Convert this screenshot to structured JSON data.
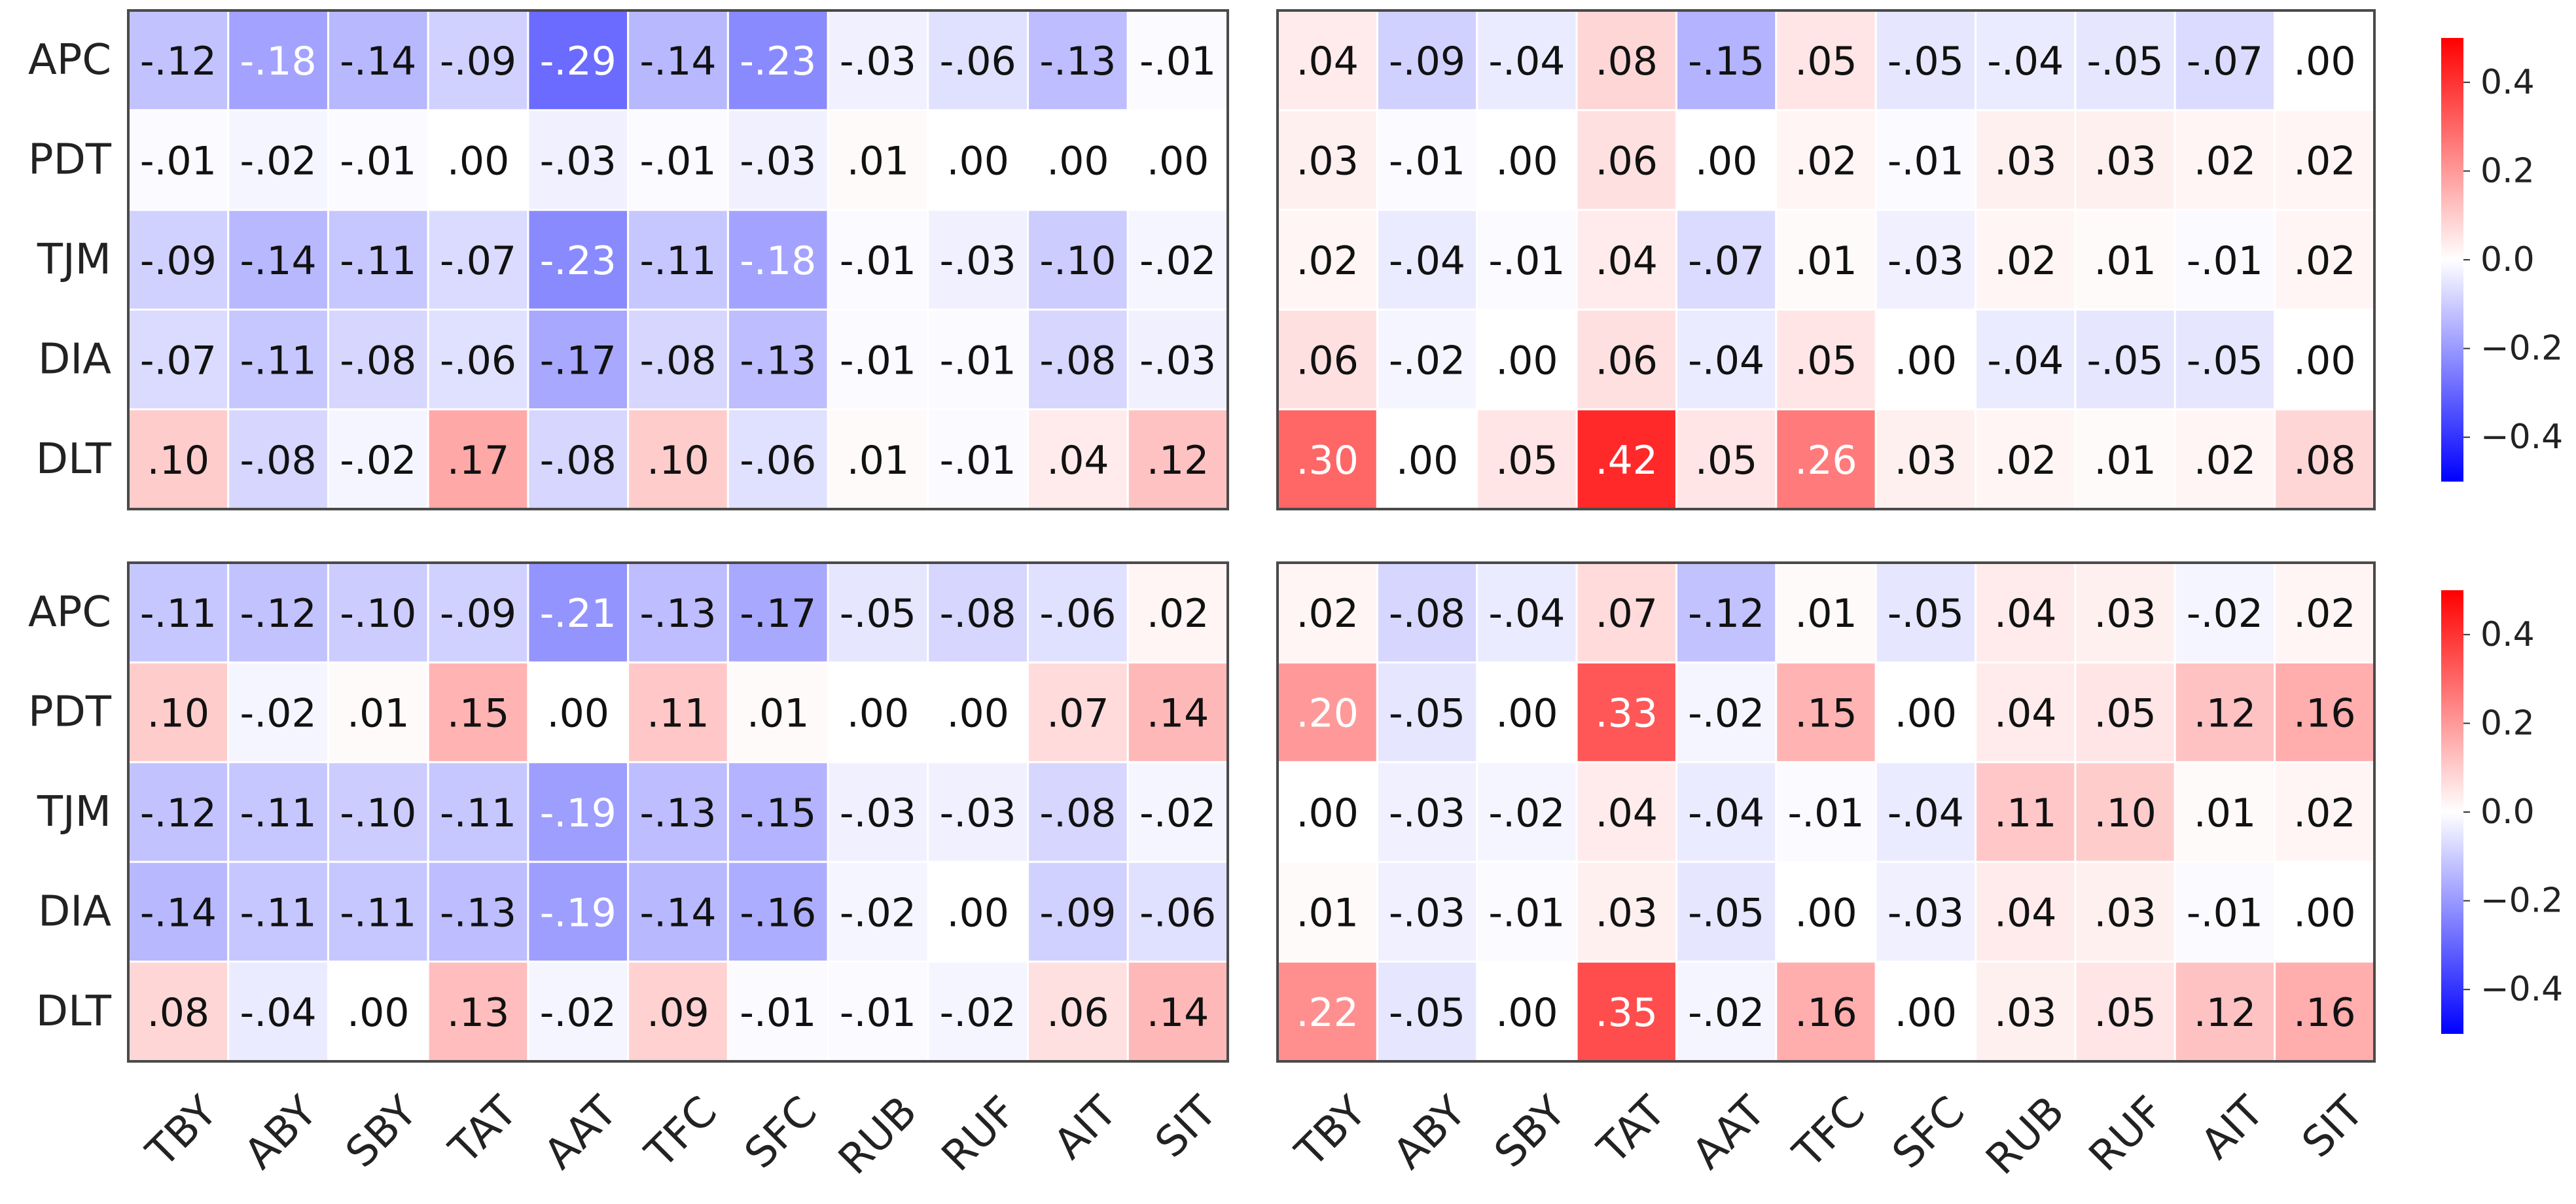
{
  "chart_data": [
    {
      "type": "heatmap",
      "rows": [
        "APC",
        "PDT",
        "TJM",
        "DIA",
        "DLT"
      ],
      "columns": [
        "TBY",
        "ABY",
        "SBY",
        "TAT",
        "AAT",
        "TFC",
        "SFC",
        "RUB",
        "RUF",
        "AIT",
        "SIT"
      ],
      "values": [
        [
          -0.12,
          -0.18,
          -0.14,
          -0.09,
          -0.29,
          -0.14,
          -0.23,
          -0.03,
          -0.06,
          -0.13,
          -0.01
        ],
        [
          -0.01,
          -0.02,
          -0.01,
          0.0,
          -0.03,
          -0.01,
          -0.03,
          0.01,
          0.0,
          0.0,
          0.0
        ],
        [
          -0.09,
          -0.14,
          -0.11,
          -0.07,
          -0.23,
          -0.11,
          -0.18,
          -0.01,
          -0.03,
          -0.1,
          -0.02
        ],
        [
          -0.07,
          -0.11,
          -0.08,
          -0.06,
          -0.17,
          -0.08,
          -0.13,
          -0.01,
          -0.01,
          -0.08,
          -0.03
        ],
        [
          0.1,
          -0.08,
          -0.02,
          0.17,
          -0.08,
          0.1,
          -0.06,
          0.01,
          -0.01,
          0.04,
          0.12
        ]
      ],
      "labels": [
        [
          "-.12",
          "-.18",
          "-.14",
          "-.09",
          "-.29",
          "-.14",
          "-.23",
          "-.03",
          "-.06",
          "-.13",
          "-.01"
        ],
        [
          "-.01",
          "-.02",
          "-.01",
          ".00",
          "-.03",
          "-.01",
          "-.03",
          ".01",
          ".00",
          ".00",
          ".00"
        ],
        [
          "-.09",
          "-.14",
          "-.11",
          "-.07",
          "-.23",
          "-.11",
          "-.18",
          "-.01",
          "-.03",
          "-.10",
          "-.02"
        ],
        [
          "-.07",
          "-.11",
          "-.08",
          "-.06",
          "-.17",
          "-.08",
          "-.13",
          "-.01",
          "-.01",
          "-.08",
          "-.03"
        ],
        [
          ".10",
          "-.08",
          "-.02",
          ".17",
          "-.08",
          ".10",
          "-.06",
          ".01",
          "-.01",
          ".04",
          ".12"
        ]
      ]
    },
    {
      "type": "heatmap",
      "rows": [
        "APC",
        "PDT",
        "TJM",
        "DIA",
        "DLT"
      ],
      "columns": [
        "TBY",
        "ABY",
        "SBY",
        "TAT",
        "AAT",
        "TFC",
        "SFC",
        "RUB",
        "RUF",
        "AIT",
        "SIT"
      ],
      "values": [
        [
          0.04,
          -0.09,
          -0.04,
          0.08,
          -0.15,
          0.05,
          -0.05,
          -0.04,
          -0.05,
          -0.07,
          0.0
        ],
        [
          0.03,
          -0.01,
          0.0,
          0.06,
          0.0,
          0.02,
          -0.01,
          0.03,
          0.03,
          0.02,
          0.02
        ],
        [
          0.02,
          -0.04,
          -0.01,
          0.04,
          -0.07,
          0.01,
          -0.03,
          0.02,
          0.01,
          -0.01,
          0.02
        ],
        [
          0.06,
          -0.02,
          0.0,
          0.06,
          -0.04,
          0.05,
          0.0,
          -0.04,
          -0.05,
          -0.05,
          0.0
        ],
        [
          0.3,
          0.0,
          0.05,
          0.42,
          0.05,
          0.26,
          0.03,
          0.02,
          0.01,
          0.02,
          0.08
        ]
      ],
      "labels": [
        [
          ".04",
          "-.09",
          "-.04",
          ".08",
          "-.15",
          ".05",
          "-.05",
          "-.04",
          "-.05",
          "-.07",
          ".00"
        ],
        [
          ".03",
          "-.01",
          ".00",
          ".06",
          ".00",
          ".02",
          "-.01",
          ".03",
          ".03",
          ".02",
          ".02"
        ],
        [
          ".02",
          "-.04",
          "-.01",
          ".04",
          "-.07",
          ".01",
          "-.03",
          ".02",
          ".01",
          "-.01",
          ".02"
        ],
        [
          ".06",
          "-.02",
          ".00",
          ".06",
          "-.04",
          ".05",
          ".00",
          "-.04",
          "-.05",
          "-.05",
          ".00"
        ],
        [
          ".30",
          ".00",
          ".05",
          ".42",
          ".05",
          ".26",
          ".03",
          ".02",
          ".01",
          ".02",
          ".08"
        ]
      ]
    },
    {
      "type": "heatmap",
      "rows": [
        "APC",
        "PDT",
        "TJM",
        "DIA",
        "DLT"
      ],
      "columns": [
        "TBY",
        "ABY",
        "SBY",
        "TAT",
        "AAT",
        "TFC",
        "SFC",
        "RUB",
        "RUF",
        "AIT",
        "SIT"
      ],
      "values": [
        [
          -0.11,
          -0.12,
          -0.1,
          -0.09,
          -0.21,
          -0.13,
          -0.17,
          -0.05,
          -0.08,
          -0.06,
          0.02
        ],
        [
          0.1,
          -0.02,
          0.01,
          0.15,
          0.0,
          0.11,
          0.01,
          0.0,
          0.0,
          0.07,
          0.14
        ],
        [
          -0.12,
          -0.11,
          -0.1,
          -0.11,
          -0.19,
          -0.13,
          -0.15,
          -0.03,
          -0.03,
          -0.08,
          -0.02
        ],
        [
          -0.14,
          -0.11,
          -0.11,
          -0.13,
          -0.19,
          -0.14,
          -0.16,
          -0.02,
          0.0,
          -0.09,
          -0.06
        ],
        [
          0.08,
          -0.04,
          0.0,
          0.13,
          -0.02,
          0.09,
          -0.01,
          -0.01,
          -0.02,
          0.06,
          0.14
        ]
      ],
      "labels": [
        [
          "-.11",
          "-.12",
          "-.10",
          "-.09",
          "-.21",
          "-.13",
          "-.17",
          "-.05",
          "-.08",
          "-.06",
          ".02"
        ],
        [
          ".10",
          "-.02",
          ".01",
          ".15",
          ".00",
          ".11",
          ".01",
          ".00",
          ".00",
          ".07",
          ".14"
        ],
        [
          "-.12",
          "-.11",
          "-.10",
          "-.11",
          "-.19",
          "-.13",
          "-.15",
          "-.03",
          "-.03",
          "-.08",
          "-.02"
        ],
        [
          "-.14",
          "-.11",
          "-.11",
          "-.13",
          "-.19",
          "-.14",
          "-.16",
          "-.02",
          ".00",
          "-.09",
          "-.06"
        ],
        [
          ".08",
          "-.04",
          ".00",
          ".13",
          "-.02",
          ".09",
          "-.01",
          "-.01",
          "-.02",
          ".06",
          ".14"
        ]
      ]
    },
    {
      "type": "heatmap",
      "rows": [
        "APC",
        "PDT",
        "TJM",
        "DIA",
        "DLT"
      ],
      "columns": [
        "TBY",
        "ABY",
        "SBY",
        "TAT",
        "AAT",
        "TFC",
        "SFC",
        "RUB",
        "RUF",
        "AIT",
        "SIT"
      ],
      "values": [
        [
          0.02,
          -0.08,
          -0.04,
          0.07,
          -0.12,
          0.01,
          -0.05,
          0.04,
          0.03,
          -0.02,
          0.02
        ],
        [
          0.2,
          -0.05,
          0.0,
          0.33,
          -0.02,
          0.15,
          0.0,
          0.04,
          0.05,
          0.12,
          0.16
        ],
        [
          0.0,
          -0.03,
          -0.02,
          0.04,
          -0.04,
          -0.01,
          -0.04,
          0.11,
          0.1,
          0.01,
          0.02
        ],
        [
          0.01,
          -0.03,
          -0.01,
          0.03,
          -0.05,
          0.0,
          -0.03,
          0.04,
          0.03,
          -0.01,
          0.0
        ],
        [
          0.22,
          -0.05,
          0.0,
          0.35,
          -0.02,
          0.16,
          0.0,
          0.03,
          0.05,
          0.12,
          0.16
        ]
      ],
      "labels": [
        [
          ".02",
          "-.08",
          "-.04",
          ".07",
          "-.12",
          ".01",
          "-.05",
          ".04",
          ".03",
          "-.02",
          ".02"
        ],
        [
          ".20",
          "-.05",
          ".00",
          ".33",
          "-.02",
          ".15",
          ".00",
          ".04",
          ".05",
          ".12",
          ".16"
        ],
        [
          ".00",
          "-.03",
          "-.02",
          ".04",
          "-.04",
          "-.01",
          "-.04",
          ".11",
          ".10",
          ".01",
          ".02"
        ],
        [
          ".01",
          "-.03",
          "-.01",
          ".03",
          "-.05",
          ".00",
          "-.03",
          ".04",
          ".03",
          "-.01",
          ".00"
        ],
        [
          ".22",
          "-.05",
          ".00",
          ".35",
          "-.02",
          ".16",
          ".00",
          ".03",
          ".05",
          ".12",
          ".16"
        ]
      ]
    }
  ],
  "colorbar": {
    "colormap": "bwr",
    "vmin": -0.5,
    "vmax": 0.5,
    "colors": {
      "low": "#0000ff",
      "mid": "#ffffff",
      "high": "#ff0000"
    },
    "ticks": [
      0.4,
      0.2,
      0.0,
      -0.2,
      -0.4
    ],
    "tick_labels": [
      "0.4",
      "0.2",
      "0.0",
      "−0.2",
      "−0.4"
    ]
  }
}
